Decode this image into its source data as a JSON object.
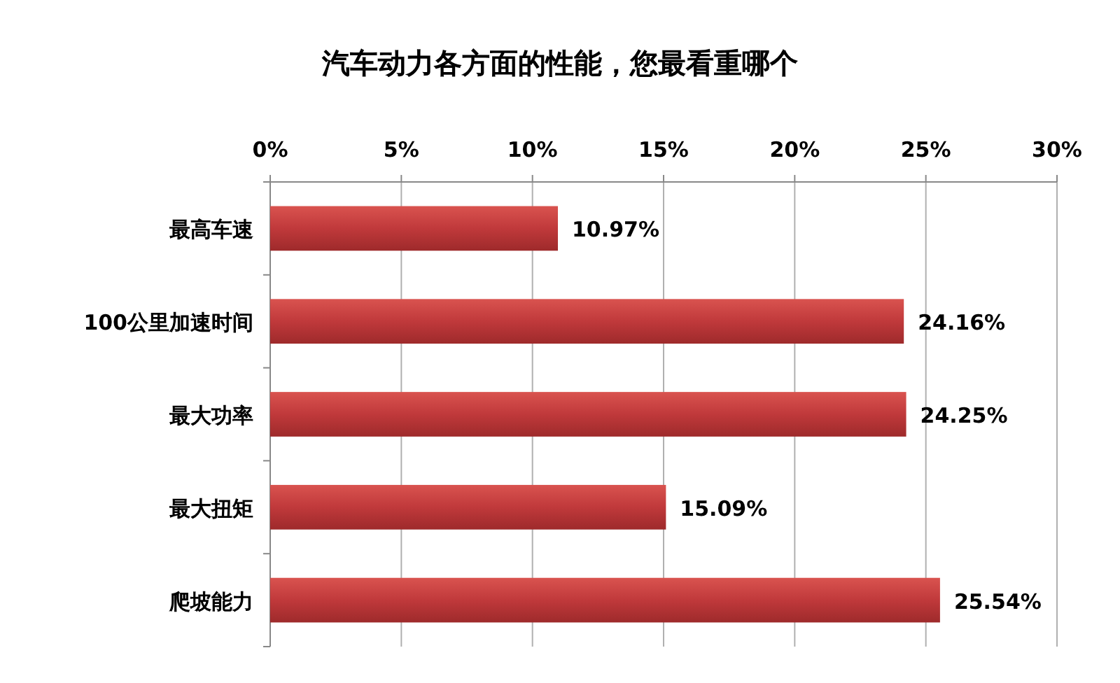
{
  "chart_data": {
    "type": "bar",
    "orientation": "horizontal",
    "title": "汽车动力各方面的性能，您最看重哪个",
    "categories": [
      "最高车速",
      "100公里加速时间",
      "最大功率",
      "最大扭矩",
      "爬坡能力"
    ],
    "values": [
      10.97,
      24.16,
      24.25,
      15.09,
      25.54
    ],
    "value_labels": [
      "10.97%",
      "24.16%",
      "24.25%",
      "15.09%",
      "25.54%"
    ],
    "color": "#c0393b",
    "xlim": [
      0,
      30
    ],
    "xticks": [
      {
        "value": 0,
        "label": "0%"
      },
      {
        "value": 5,
        "label": "5%"
      },
      {
        "value": 10,
        "label": "10%"
      },
      {
        "value": 15,
        "label": "15%"
      },
      {
        "value": 20,
        "label": "20%"
      },
      {
        "value": 25,
        "label": "25%"
      },
      {
        "value": 30,
        "label": "30%"
      }
    ],
    "grid": "x"
  }
}
